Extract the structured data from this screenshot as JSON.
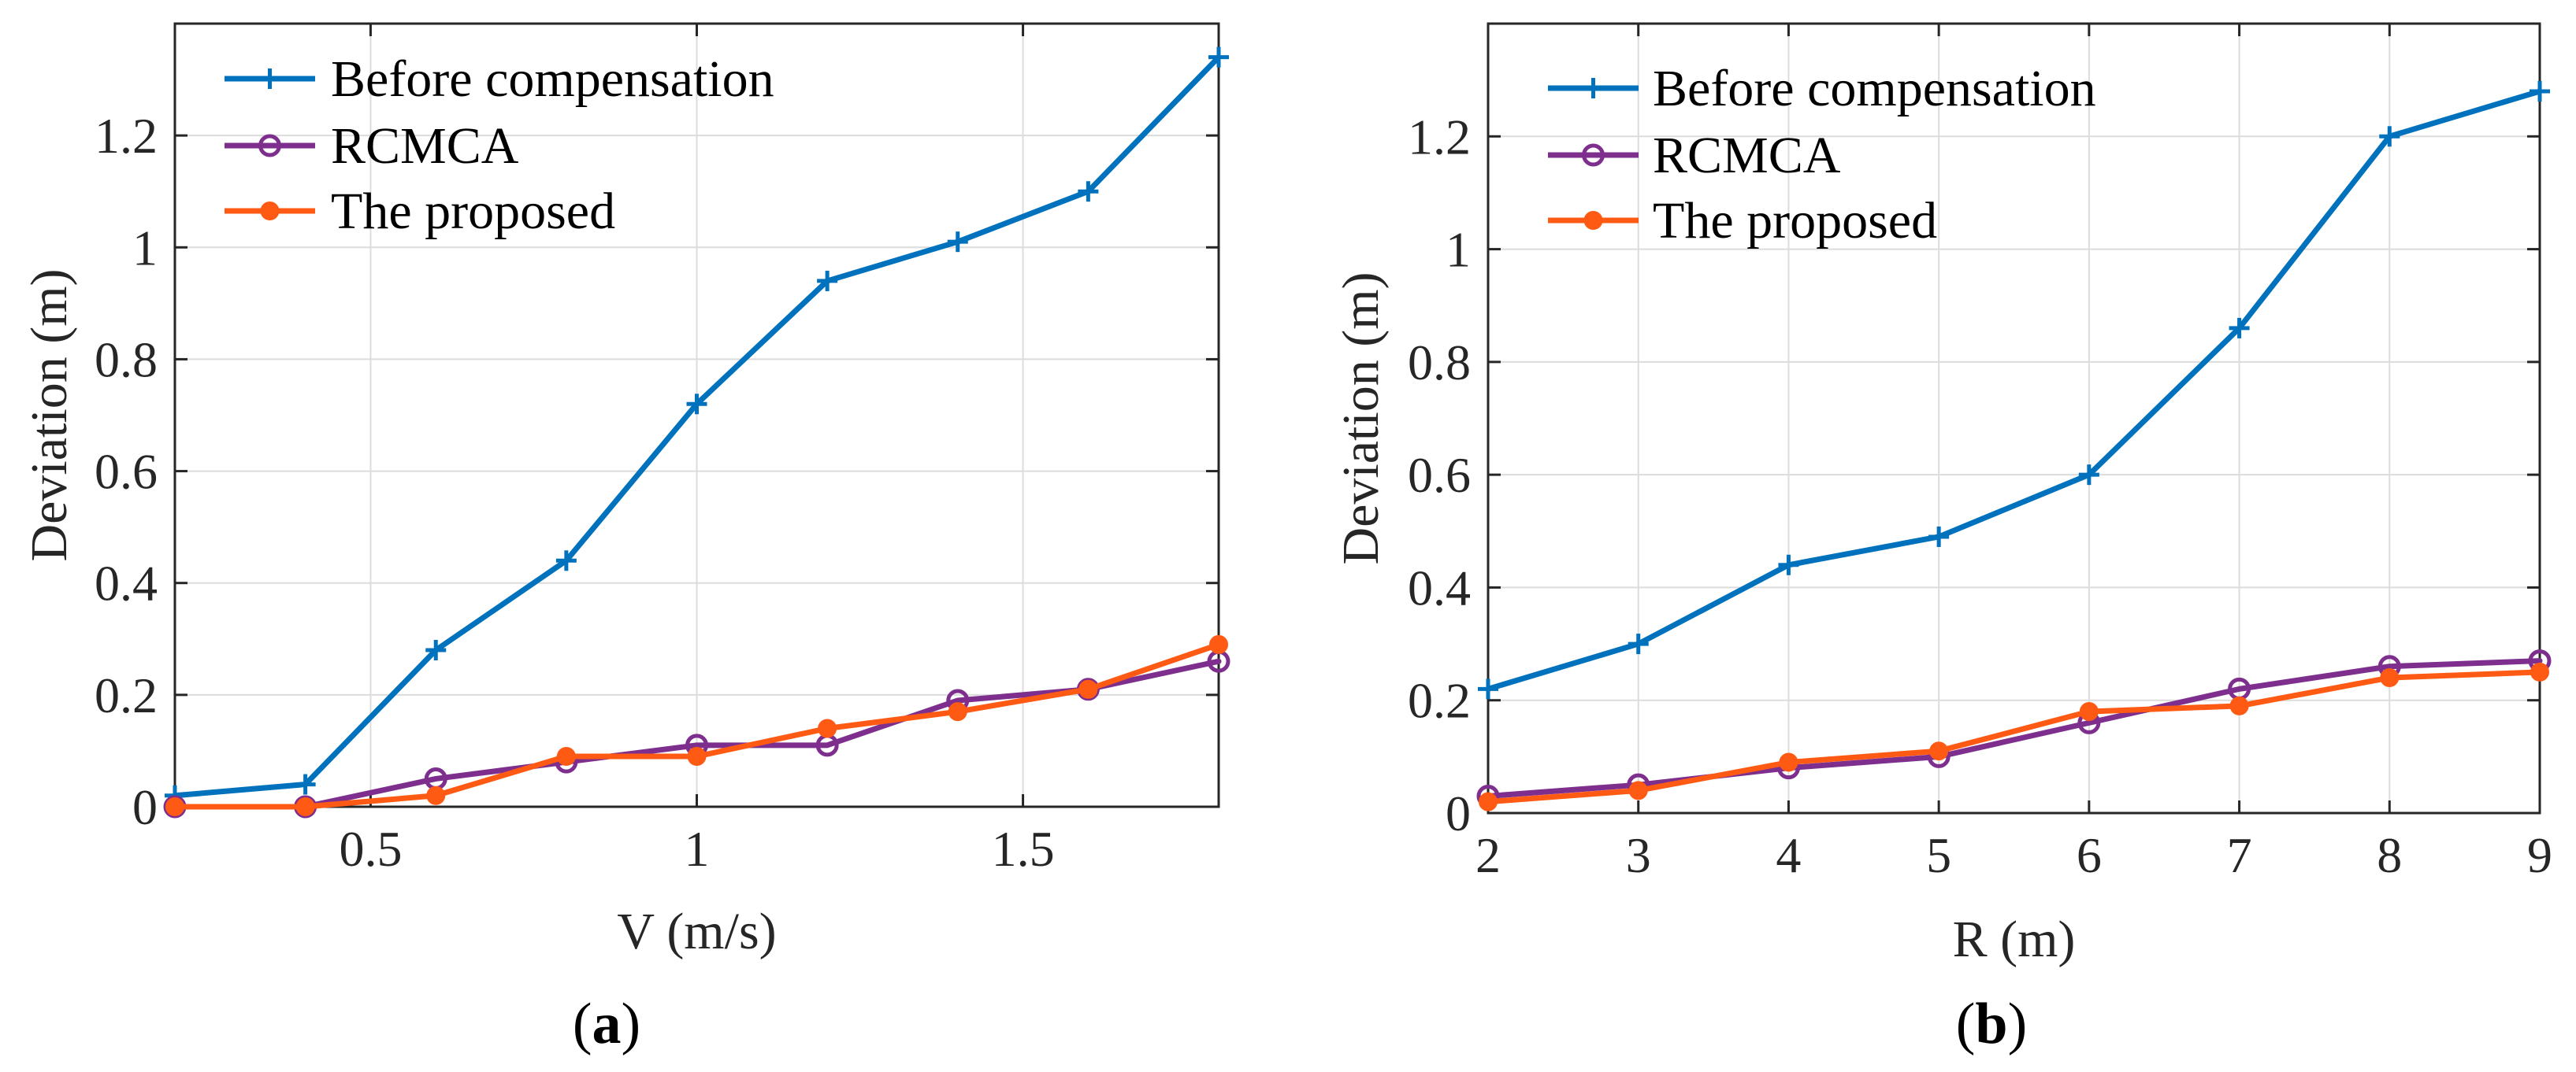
{
  "figure": {
    "series_colors": {
      "before": "#0072BD",
      "rcmca": "#7E2F8E",
      "proposed": "#FF5A14"
    }
  },
  "chart_data": [
    {
      "type": "line",
      "panel_label": "a",
      "xlabel": "V (m/s)",
      "ylabel": "Deviation (m)",
      "xlim": [
        0.2,
        1.8
      ],
      "ylim": [
        0,
        1.4
      ],
      "xticks": [
        0.5,
        1,
        1.5
      ],
      "xtick_labels": [
        "0.5",
        "1",
        "1.5"
      ],
      "yticks": [
        0,
        0.2,
        0.4,
        0.6,
        0.8,
        1,
        1.2
      ],
      "ytick_labels": [
        "0",
        "0.2",
        "0.4",
        "0.6",
        "0.8",
        "1",
        "1.2"
      ],
      "grid": true,
      "legend_position": "top-left",
      "x": [
        0.2,
        0.4,
        0.6,
        0.8,
        1.0,
        1.2,
        1.4,
        1.6,
        1.8
      ],
      "series": [
        {
          "key": "before",
          "name": "Before compensation",
          "marker": "plus",
          "values": [
            0.02,
            0.04,
            0.28,
            0.44,
            0.72,
            0.94,
            1.01,
            1.1,
            1.34
          ]
        },
        {
          "key": "rcmca",
          "name": "RCMCA",
          "marker": "circle",
          "values": [
            0.0,
            0.0,
            0.05,
            0.08,
            0.11,
            0.11,
            0.19,
            0.21,
            0.26
          ]
        },
        {
          "key": "proposed",
          "name": "The proposed",
          "marker": "dot",
          "values": [
            0.0,
            0.0,
            0.02,
            0.09,
            0.09,
            0.14,
            0.17,
            0.21,
            0.29
          ]
        }
      ]
    },
    {
      "type": "line",
      "panel_label": "b",
      "xlabel": "R (m)",
      "ylabel": "Deviation (m)",
      "xlim": [
        2,
        9
      ],
      "ylim": [
        0,
        1.4
      ],
      "xticks": [
        2,
        3,
        4,
        5,
        6,
        7,
        8,
        9
      ],
      "xtick_labels": [
        "2",
        "3",
        "4",
        "5",
        "6",
        "7",
        "8",
        "9"
      ],
      "yticks": [
        0,
        0.2,
        0.4,
        0.6,
        0.8,
        1,
        1.2
      ],
      "ytick_labels": [
        "0",
        "0.2",
        "0.4",
        "0.6",
        "0.8",
        "1",
        "1.2"
      ],
      "grid": true,
      "legend_position": "top-left",
      "x": [
        2,
        3,
        4,
        5,
        6,
        7,
        8,
        9
      ],
      "series": [
        {
          "key": "before",
          "name": "Before compensation",
          "marker": "plus",
          "values": [
            0.22,
            0.3,
            0.44,
            0.49,
            0.6,
            0.86,
            1.2,
            1.28
          ]
        },
        {
          "key": "rcmca",
          "name": "RCMCA",
          "marker": "circle",
          "values": [
            0.03,
            0.05,
            0.08,
            0.1,
            0.16,
            0.22,
            0.26,
            0.27
          ]
        },
        {
          "key": "proposed",
          "name": "The proposed",
          "marker": "dot",
          "values": [
            0.02,
            0.04,
            0.09,
            0.11,
            0.18,
            0.19,
            0.24,
            0.25
          ]
        }
      ]
    }
  ]
}
